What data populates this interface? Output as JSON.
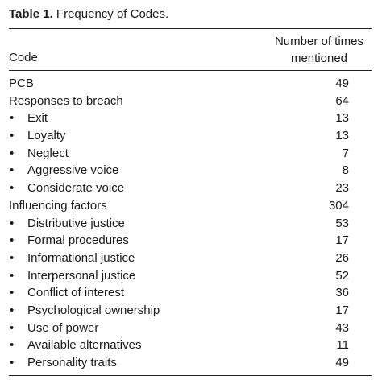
{
  "caption": {
    "label": "Table 1.",
    "title": "Frequency of Codes."
  },
  "header": {
    "code": "Code",
    "count_line1": "Number of times",
    "count_line2": "mentioned"
  },
  "bullet": "•",
  "rows": [
    {
      "name": "PCB",
      "count": "49",
      "sub": false
    },
    {
      "name": "Responses to breach",
      "count": "64",
      "sub": false
    },
    {
      "name": "Exit",
      "count": "13",
      "sub": true
    },
    {
      "name": "Loyalty",
      "count": "13",
      "sub": true
    },
    {
      "name": "Neglect",
      "count": "7",
      "sub": true
    },
    {
      "name": "Aggressive voice",
      "count": "8",
      "sub": true
    },
    {
      "name": "Considerate voice",
      "count": "23",
      "sub": true
    },
    {
      "name": "Influencing factors",
      "count": "304",
      "sub": false
    },
    {
      "name": "Distributive justice",
      "count": "53",
      "sub": true
    },
    {
      "name": "Formal procedures",
      "count": "17",
      "sub": true
    },
    {
      "name": "Informational justice",
      "count": "26",
      "sub": true
    },
    {
      "name": "Interpersonal justice",
      "count": "52",
      "sub": true
    },
    {
      "name": "Conflict of interest",
      "count": "36",
      "sub": true
    },
    {
      "name": "Psychological ownership",
      "count": "17",
      "sub": true
    },
    {
      "name": "Use of power",
      "count": "43",
      "sub": true
    },
    {
      "name": "Available alternatives",
      "count": "11",
      "sub": true
    },
    {
      "name": "Personality traits",
      "count": "49",
      "sub": true
    }
  ]
}
